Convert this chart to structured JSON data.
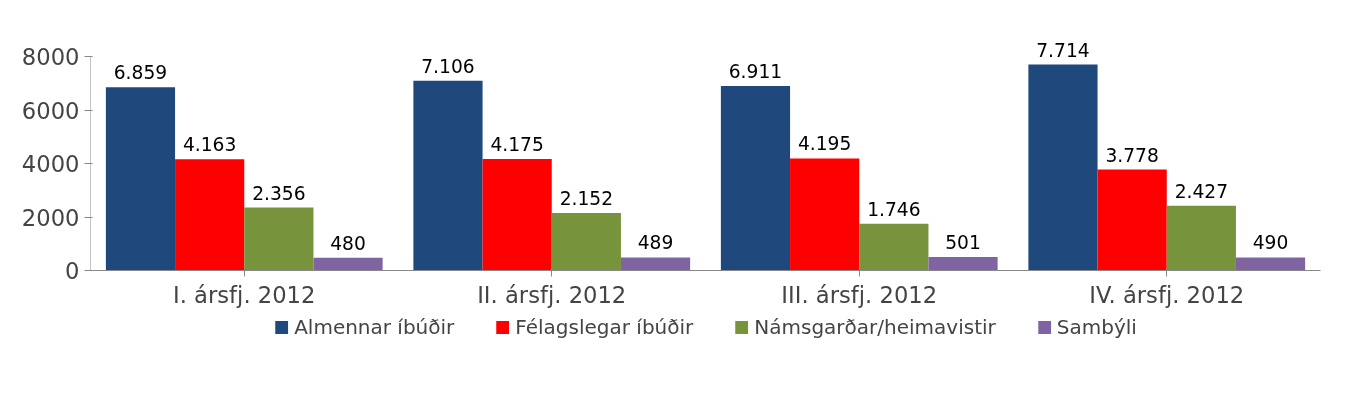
{
  "chart_data": {
    "type": "bar",
    "categories": [
      "I. ársfj. 2012",
      "II. ársfj. 2012",
      "III. ársfj. 2012",
      "IV. ársfj. 2012"
    ],
    "series": [
      {
        "name": "Almennar íbúðir",
        "color": "#1f497d",
        "values": [
          6859,
          7106,
          6911,
          7714
        ],
        "value_labels": [
          "6.859",
          "7.106",
          "6.911",
          "7.714"
        ]
      },
      {
        "name": "Félagslegar íbúðir",
        "color": "#ff0000",
        "values": [
          4163,
          4175,
          4195,
          3778
        ],
        "value_labels": [
          "4.163",
          "4.175",
          "4.195",
          "3.778"
        ]
      },
      {
        "name": "Námsgarðar/heimavistir",
        "color": "#77933c",
        "values": [
          2356,
          2152,
          1746,
          2427
        ],
        "value_labels": [
          "2.356",
          "2.152",
          "1.746",
          "2.427"
        ]
      },
      {
        "name": "Sambýli",
        "color": "#8064a2",
        "values": [
          480,
          489,
          501,
          490
        ],
        "value_labels": [
          "480",
          "489",
          "501",
          "490"
        ]
      }
    ],
    "ylim": [
      0,
      8000
    ],
    "yticks": [
      0,
      2000,
      4000,
      6000,
      8000
    ],
    "grid": false,
    "legend": "bottom"
  }
}
